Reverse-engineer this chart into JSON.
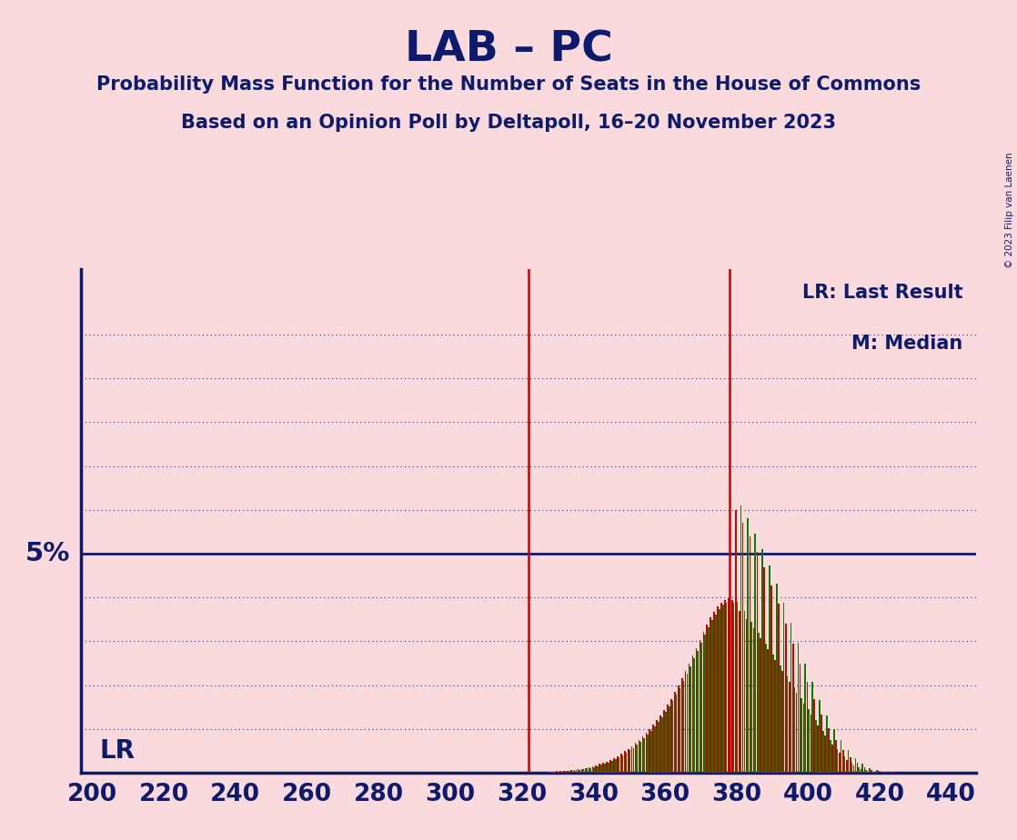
{
  "title": "LAB – PC",
  "subtitle": "Probability Mass Function for the Number of Seats in the House of Commons",
  "subsubtitle": "Based on an Opinion Poll by Deltapoll, 16–20 November 2023",
  "copyright": "© 2023 Filip van Laenen",
  "background_color": "#FADADD",
  "title_color": "#0D1B6E",
  "axis_color": "#0D1B6E",
  "lr_line_x": 322,
  "median_line_x": 378,
  "lr_label": "LR",
  "lr_legend": "LR: Last Result",
  "median_legend": "M: Median",
  "five_pct_label": "5%",
  "five_pct_value": 0.05,
  "xmin": 197,
  "xmax": 447,
  "ymin": 0,
  "ymax": 0.115,
  "xticks": [
    200,
    220,
    240,
    260,
    280,
    300,
    320,
    340,
    360,
    380,
    400,
    420,
    440
  ],
  "grid_y_values": [
    0.01,
    0.02,
    0.03,
    0.04,
    0.06,
    0.07,
    0.08,
    0.09,
    0.1
  ],
  "bar_color_red": "#CC0000",
  "bar_color_green": "#008000",
  "pmf_data": {
    "328": [
      0.0003,
      0.0002
    ],
    "329": [
      0.0003,
      0.0002
    ],
    "330": [
      0.0004,
      0.0003
    ],
    "331": [
      0.0004,
      0.0003
    ],
    "332": [
      0.0005,
      0.0004
    ],
    "333": [
      0.0005,
      0.0004
    ],
    "334": [
      0.0006,
      0.0005
    ],
    "335": [
      0.0007,
      0.0006
    ],
    "336": [
      0.0008,
      0.0007
    ],
    "337": [
      0.0009,
      0.0008
    ],
    "338": [
      0.0011,
      0.001
    ],
    "339": [
      0.0013,
      0.0011
    ],
    "340": [
      0.0015,
      0.0013
    ],
    "341": [
      0.0017,
      0.0015
    ],
    "342": [
      0.002,
      0.0018
    ],
    "343": [
      0.0023,
      0.0021
    ],
    "344": [
      0.0026,
      0.0024
    ],
    "345": [
      0.003,
      0.0027
    ],
    "346": [
      0.0034,
      0.0031
    ],
    "347": [
      0.0038,
      0.0035
    ],
    "348": [
      0.0043,
      0.004
    ],
    "349": [
      0.0049,
      0.0045
    ],
    "350": [
      0.0055,
      0.0051
    ],
    "351": [
      0.0061,
      0.0057
    ],
    "352": [
      0.0068,
      0.0064
    ],
    "353": [
      0.0075,
      0.0071
    ],
    "354": [
      0.0083,
      0.0079
    ],
    "355": [
      0.0091,
      0.0087
    ],
    "356": [
      0.01,
      0.0096
    ],
    "357": [
      0.011,
      0.0106
    ],
    "358": [
      0.012,
      0.0116
    ],
    "359": [
      0.0131,
      0.0127
    ],
    "360": [
      0.0143,
      0.0139
    ],
    "361": [
      0.0156,
      0.0152
    ],
    "362": [
      0.0169,
      0.0165
    ],
    "363": [
      0.0184,
      0.0179
    ],
    "364": [
      0.0199,
      0.0194
    ],
    "365": [
      0.0215,
      0.021
    ],
    "366": [
      0.0232,
      0.0226
    ],
    "367": [
      0.0249,
      0.0243
    ],
    "368": [
      0.0267,
      0.0261
    ],
    "369": [
      0.0285,
      0.0279
    ],
    "370": [
      0.0303,
      0.0297
    ],
    "371": [
      0.0321,
      0.0315
    ],
    "372": [
      0.0338,
      0.0332
    ],
    "373": [
      0.0354,
      0.0348
    ],
    "374": [
      0.0368,
      0.0362
    ],
    "375": [
      0.038,
      0.0374
    ],
    "376": [
      0.0389,
      0.0383
    ],
    "377": [
      0.0395,
      0.0389
    ],
    "378": [
      0.0398,
      0.0392
    ],
    "379": [
      0.0395,
      0.0389
    ],
    "380": [
      0.06,
      0.039
    ],
    "381": [
      0.037,
      0.061
    ],
    "382": [
      0.057,
      0.037
    ],
    "383": [
      0.035,
      0.058
    ],
    "384": [
      0.054,
      0.0345
    ],
    "385": [
      0.033,
      0.0545
    ],
    "386": [
      0.0505,
      0.032
    ],
    "387": [
      0.0308,
      0.051
    ],
    "388": [
      0.0468,
      0.0295
    ],
    "389": [
      0.0283,
      0.0473
    ],
    "390": [
      0.0428,
      0.027
    ],
    "391": [
      0.0258,
      0.0432
    ],
    "392": [
      0.0385,
      0.0245
    ],
    "393": [
      0.0233,
      0.0388
    ],
    "394": [
      0.034,
      0.022
    ],
    "395": [
      0.0208,
      0.0342
    ],
    "396": [
      0.0295,
      0.0195
    ],
    "397": [
      0.0183,
      0.0296
    ],
    "398": [
      0.025,
      0.017
    ],
    "399": [
      0.0158,
      0.025
    ],
    "400": [
      0.0208,
      0.0145
    ],
    "401": [
      0.0133,
      0.0207
    ],
    "402": [
      0.0168,
      0.012
    ],
    "403": [
      0.0108,
      0.0167
    ],
    "404": [
      0.0132,
      0.0096
    ],
    "405": [
      0.0085,
      0.0131
    ],
    "406": [
      0.0101,
      0.0074
    ],
    "407": [
      0.0064,
      0.01
    ],
    "408": [
      0.0075,
      0.0055
    ],
    "409": [
      0.0046,
      0.0074
    ],
    "410": [
      0.0053,
      0.0038
    ],
    "411": [
      0.003,
      0.0052
    ],
    "412": [
      0.0035,
      0.0023
    ],
    "413": [
      0.0016,
      0.0034
    ],
    "414": [
      0.0022,
      0.0012
    ],
    "415": [
      0.0008,
      0.0021
    ],
    "416": [
      0.0012,
      0.0006
    ],
    "417": [
      0.0003,
      0.0011
    ],
    "418": [
      0.0007,
      0.0002
    ],
    "419": [
      0.0001,
      0.0006
    ],
    "420": [
      0.0004,
      0.0001
    ],
    "421": [
      0.0001,
      0.0003
    ],
    "422": [
      0.0002,
      0.0001
    ],
    "423": [
      0.0001,
      0.0002
    ],
    "424": [
      0.0001,
      0.0001
    ],
    "425": [
      0.0001,
      0.0001
    ]
  }
}
